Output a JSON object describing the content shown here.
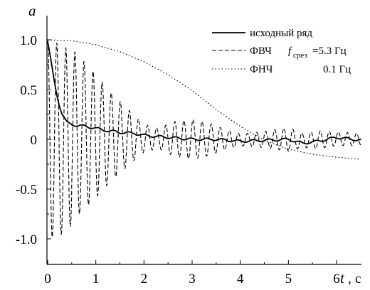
{
  "chart_data": {
    "type": "line",
    "xlabel": "t",
    "xunit": "с",
    "ylabel": "a",
    "xlim": [
      0,
      7
    ],
    "ylim": [
      -1.15,
      1.15
    ],
    "xticks": [
      0,
      1,
      2,
      3,
      4,
      5,
      6
    ],
    "yticks": [
      1.0,
      0.5,
      0,
      -0.5,
      -1.0
    ],
    "ytick_labels": [
      "1.0",
      "0.5",
      "0",
      "-0.5",
      "-1.0"
    ],
    "legend": {
      "position": "top-right"
    },
    "series": [
      {
        "name": "исходный ряд",
        "style": "solid",
        "x": [
          0,
          0.05,
          0.1,
          0.15,
          0.2,
          0.25,
          0.3,
          0.4,
          0.5,
          0.6,
          0.8,
          1.0,
          1.2,
          1.5,
          1.8,
          2.0,
          2.5,
          3.0,
          3.5,
          4.0,
          4.5,
          5.0,
          5.3,
          5.6,
          6.0,
          6.5,
          7.0
        ],
        "y": [
          0.98,
          0.85,
          0.7,
          0.55,
          0.42,
          0.32,
          0.25,
          0.18,
          0.15,
          0.14,
          0.13,
          0.11,
          0.09,
          0.07,
          0.06,
          0.04,
          0.02,
          0.0,
          0.0,
          -0.02,
          -0.01,
          0.0,
          -0.04,
          -0.02,
          0.02,
          -0.01,
          0.0
        ]
      },
      {
        "name": "ФВЧ",
        "label_symbol": "f",
        "label_subscript": "срез",
        "label_value": "=5.3 Гц",
        "style": "dashed",
        "frequency_hz": 5.3,
        "amplitude": {
          "t": [
            0,
            0.3,
            0.6,
            1.0,
            1.3,
            1.7,
            2.0,
            2.3,
            2.6,
            3.0,
            3.3,
            3.7,
            4.0,
            4.5,
            5.0,
            5.3,
            5.6,
            6.0,
            6.5,
            7.0
          ],
          "a": [
            1.0,
            0.95,
            0.82,
            0.62,
            0.45,
            0.27,
            0.14,
            0.1,
            0.17,
            0.2,
            0.17,
            0.1,
            0.06,
            0.08,
            0.12,
            0.07,
            0.09,
            0.07,
            0.06,
            0.05
          ]
        }
      },
      {
        "name": "ФНЧ",
        "label_value": "0.1 Гц",
        "style": "dotted",
        "x": [
          0,
          0.5,
          1,
          1.5,
          2,
          2.5,
          3,
          3.5,
          4,
          4.5,
          5,
          5.5,
          6,
          6.5,
          7
        ],
        "y": [
          1.0,
          0.99,
          0.95,
          0.88,
          0.78,
          0.65,
          0.49,
          0.3,
          0.13,
          -0.01,
          -0.1,
          -0.15,
          -0.18,
          -0.2,
          -0.21
        ]
      }
    ]
  }
}
